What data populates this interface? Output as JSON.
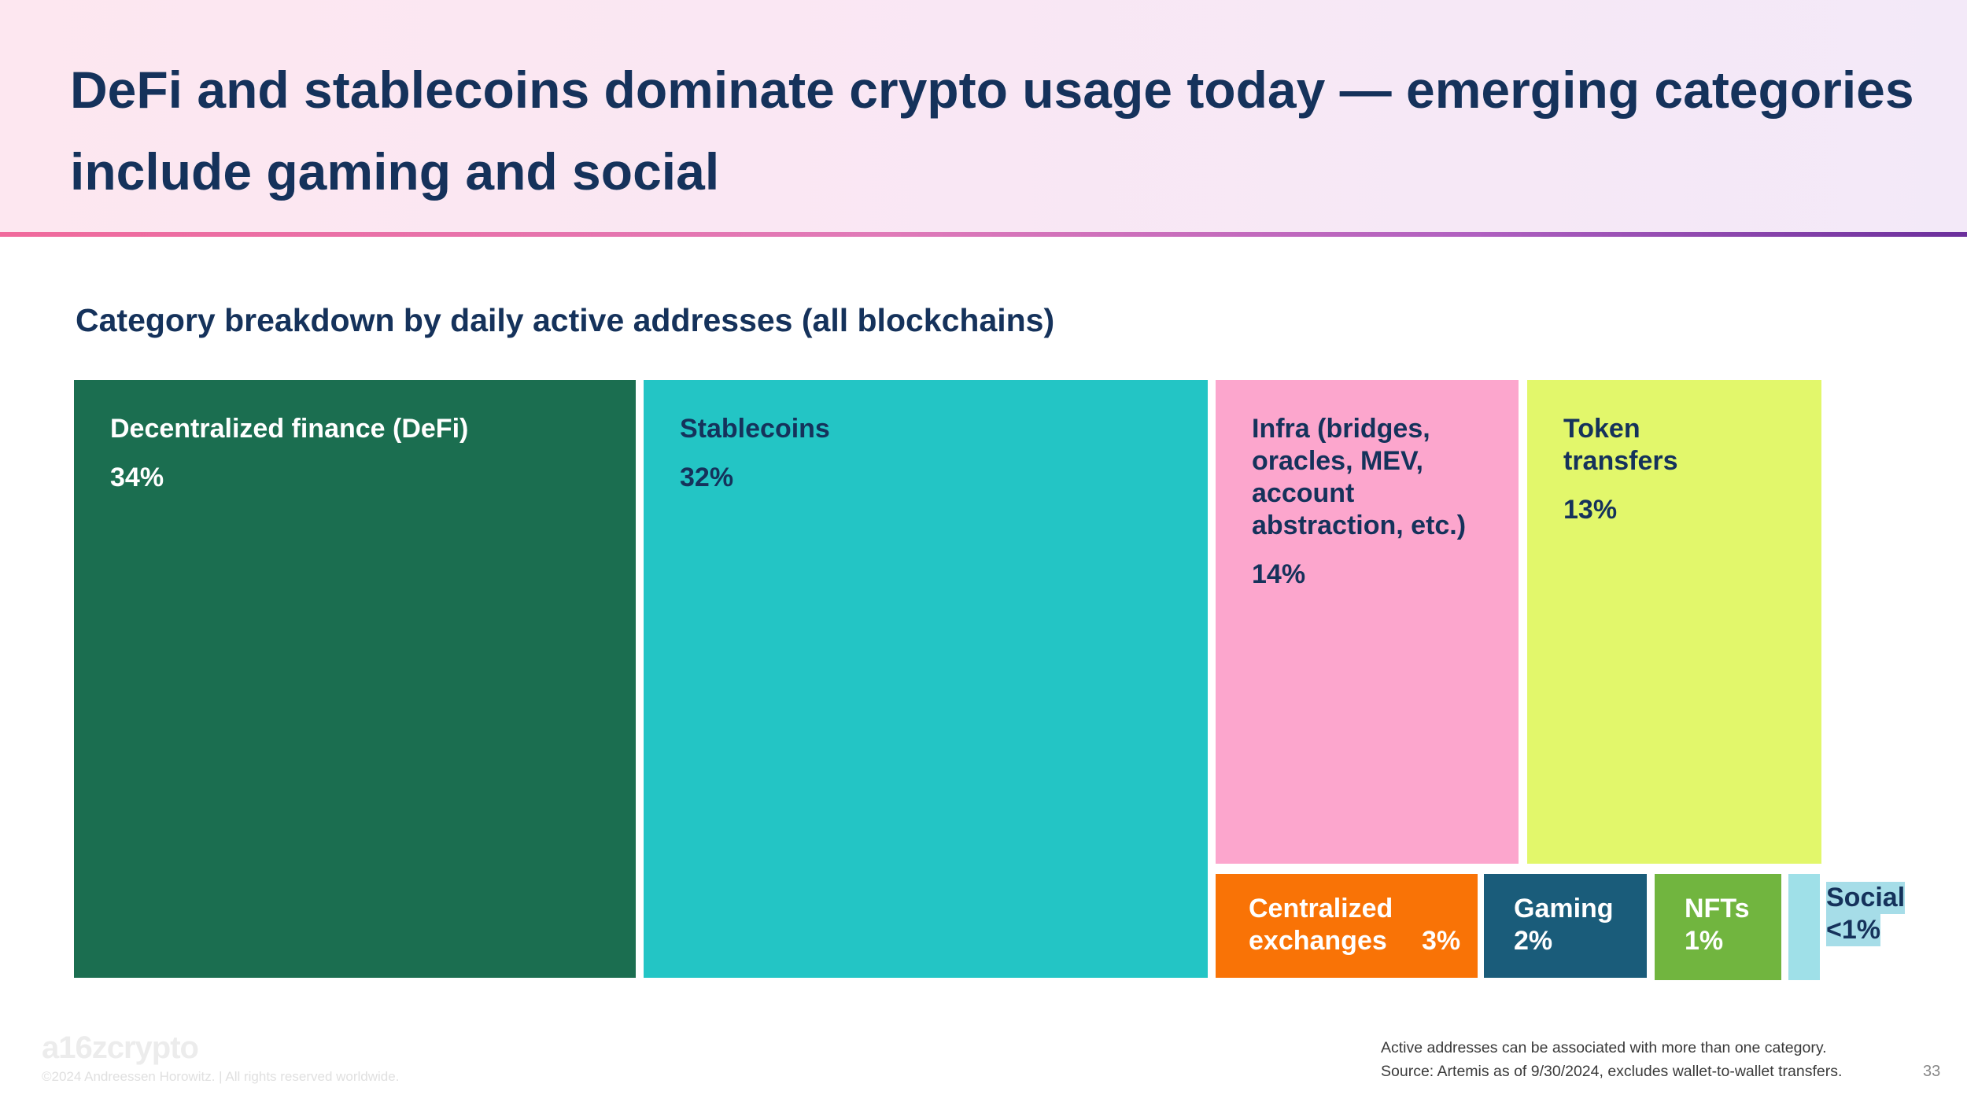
{
  "header": {
    "title": "DeFi and stablecoins dominate crypto usage today — emerging categories include gaming and social"
  },
  "chart_data": {
    "type": "treemap",
    "title": "Category breakdown by daily active addresses (all blockchains)",
    "items": [
      {
        "name": "Decentralized finance (DeFi)",
        "label": "34%",
        "value": 34,
        "color": "#1b6e50",
        "text_color": "#ffffff"
      },
      {
        "name": "Stablecoins",
        "label": "32%",
        "value": 32,
        "color": "#23c5c5",
        "text_color": "#15325b"
      },
      {
        "name": "Infra (bridges, oracles, MEV, account abstraction, etc.)",
        "label": "14%",
        "value": 14,
        "color": "#fca6cd",
        "text_color": "#15325b"
      },
      {
        "name": "Token transfers",
        "label": "13%",
        "value": 13,
        "color": "#e2f76b",
        "text_color": "#15325b"
      },
      {
        "name": "Centralized exchanges",
        "label": "3%",
        "value": 3,
        "color": "#f97306",
        "text_color": "#ffffff"
      },
      {
        "name": "Gaming",
        "label": "2%",
        "value": 2,
        "color": "#1a5c7a",
        "text_color": "#ffffff"
      },
      {
        "name": "NFTs",
        "label": "1%",
        "value": 1,
        "color": "#71b53f",
        "text_color": "#ffffff"
      },
      {
        "name": "Social",
        "label": "<1%",
        "value": 0.5,
        "color": "#9fe0e8",
        "text_color": "#15325b"
      }
    ]
  },
  "footer": {
    "logo": "a16zcrypto",
    "copyright": "©2024 Andreessen Horowitz.  |  All rights reserved worldwide.",
    "note": "Active addresses can be associated with more than one category.",
    "source": "Source: Artemis as of 9/30/2024, excludes wallet-to-wallet transfers.",
    "page_number": "33"
  }
}
